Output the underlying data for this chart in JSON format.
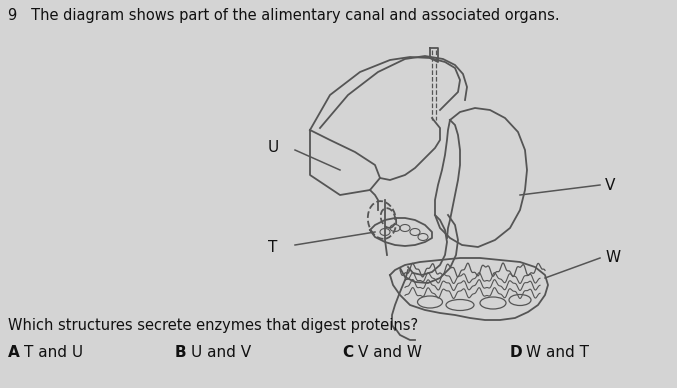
{
  "bg_color": "#d4d4d4",
  "title_text": "9   The diagram shows part of the alimentary canal and associated organs.",
  "question_text": "Which structures secrete enzymes that digest proteins?",
  "choices": [
    {
      "letter": "A",
      "text": "T and U"
    },
    {
      "letter": "B",
      "text": "U and V"
    },
    {
      "letter": "C",
      "text": "V and W"
    },
    {
      "letter": "D",
      "text": "W and T"
    }
  ],
  "line_color": "#555555",
  "text_color": "#111111",
  "title_fontsize": 10.5,
  "question_fontsize": 10.5,
  "choice_fontsize": 11
}
